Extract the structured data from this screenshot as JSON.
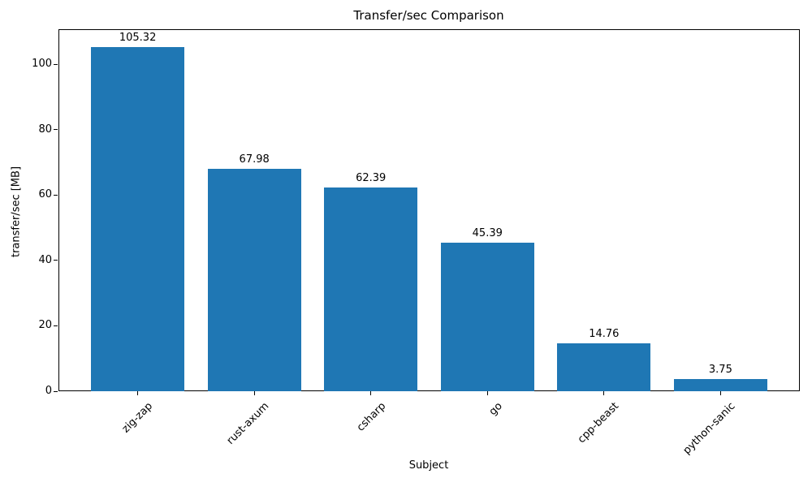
{
  "chart_data": {
    "type": "bar",
    "title": "Transfer/sec Comparison",
    "xlabel": "Subject",
    "ylabel": "transfer/sec [MB]",
    "categories": [
      "zig-zap",
      "rust-axum",
      "csharp",
      "go",
      "cpp-beast",
      "python-sanic"
    ],
    "values": [
      105.32,
      67.98,
      62.39,
      45.39,
      14.76,
      3.75
    ],
    "bar_value_labels": [
      "105.32",
      "67.98",
      "62.39",
      "45.39",
      "14.76",
      "3.75"
    ],
    "yticks": [
      0,
      20,
      40,
      60,
      80,
      100
    ],
    "ytick_labels": [
      "0",
      "20",
      "40",
      "60",
      "80",
      "100"
    ],
    "ylim": [
      0,
      110.7
    ],
    "bar_color": "#1f77b4",
    "text_color": "#000000",
    "grid": false,
    "legend": "none",
    "background": "#ffffff"
  }
}
